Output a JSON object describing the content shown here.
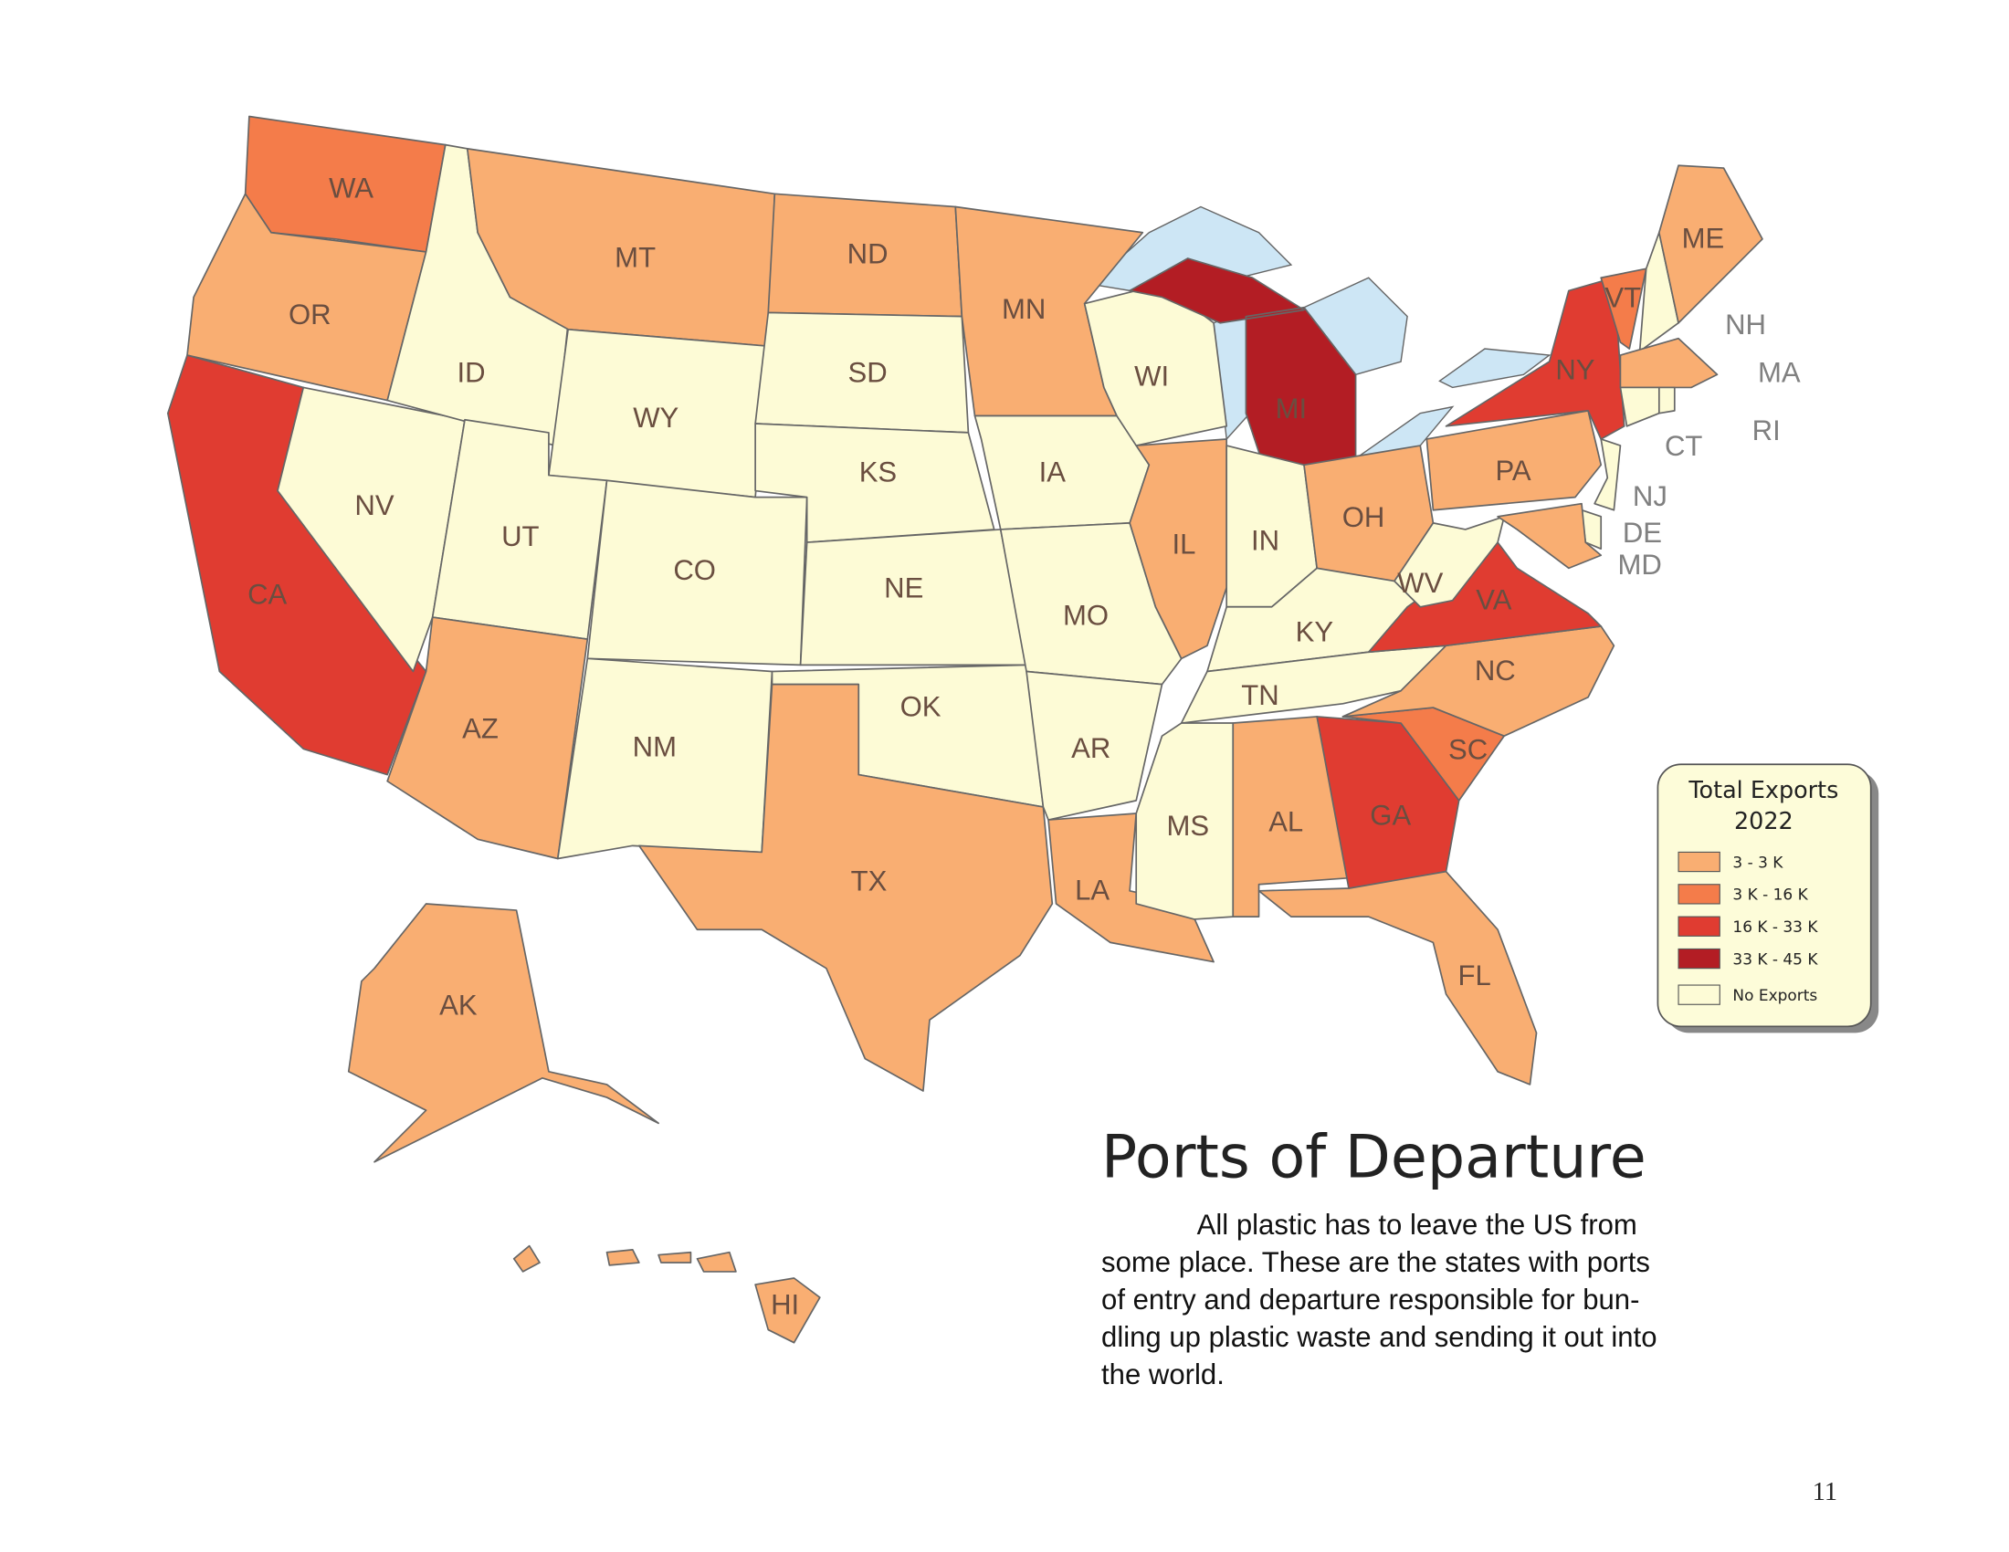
{
  "title": "Ports of Departure",
  "body": [
    "All plastic has to leave the US from",
    "some place. These are the states with ports",
    "of entry and departure responsible for bun-",
    "dling up plastic waste and sending it out into",
    "the world."
  ],
  "page_number": "11",
  "legend": {
    "title": [
      "Total Exports",
      "2022"
    ],
    "items": [
      {
        "label": "3 - 3 K",
        "color": "#f9ae72"
      },
      {
        "label": "3 K - 16 K",
        "color": "#f47c4a"
      },
      {
        "label": "16 K - 33 K",
        "color": "#e03c31"
      },
      {
        "label": "33 K - 45 K",
        "color": "#b31d24"
      },
      {
        "label": "No Exports",
        "color": "#fdfbd6"
      }
    ]
  },
  "states": [
    {
      "label": "WA",
      "color": "#f47c4a"
    },
    {
      "label": "OR",
      "color": "#f9ae72"
    },
    {
      "label": "CA",
      "color": "#e03c31"
    },
    {
      "label": "NV",
      "color": "#fdfbd6"
    },
    {
      "label": "ID",
      "color": "#fdfbd6"
    },
    {
      "label": "MT",
      "color": "#f9ae72"
    },
    {
      "label": "WY",
      "color": "#fdfbd6"
    },
    {
      "label": "UT",
      "color": "#fdfbd6"
    },
    {
      "label": "CO",
      "color": "#fdfbd6"
    },
    {
      "label": "AZ",
      "color": "#f9ae72"
    },
    {
      "label": "NM",
      "color": "#fdfbd6"
    },
    {
      "label": "ND",
      "color": "#f9ae72"
    },
    {
      "label": "SD",
      "color": "#fdfbd6"
    },
    {
      "label": "KS",
      "color": "#fdfbd6"
    },
    {
      "label": "NE",
      "color": "#fdfbd6"
    },
    {
      "label": "OK",
      "color": "#fdfbd6"
    },
    {
      "label": "TX",
      "color": "#f9ae72"
    },
    {
      "label": "MN",
      "color": "#f9ae72"
    },
    {
      "label": "IA",
      "color": "#fdfbd6"
    },
    {
      "label": "MO",
      "color": "#fdfbd6"
    },
    {
      "label": "AR",
      "color": "#fdfbd6"
    },
    {
      "label": "LA",
      "color": "#f9ae72"
    },
    {
      "label": "WI",
      "color": "#fdfbd6"
    },
    {
      "label": "IL",
      "color": "#f9ae72"
    },
    {
      "label": "MI",
      "color": "#b31d24"
    },
    {
      "label": "IN",
      "color": "#fdfbd6"
    },
    {
      "label": "OH",
      "color": "#f9ae72"
    },
    {
      "label": "KY",
      "color": "#fdfbd6"
    },
    {
      "label": "TN",
      "color": "#fdfbd6"
    },
    {
      "label": "MS",
      "color": "#fdfbd6"
    },
    {
      "label": "AL",
      "color": "#f9ae72"
    },
    {
      "label": "GA",
      "color": "#e03c31"
    },
    {
      "label": "FL",
      "color": "#f9ae72"
    },
    {
      "label": "SC",
      "color": "#f47c4a"
    },
    {
      "label": "NC",
      "color": "#f9ae72"
    },
    {
      "label": "VA",
      "color": "#e03c31"
    },
    {
      "label": "WV",
      "color": "#fdfbd6"
    },
    {
      "label": "PA",
      "color": "#f9ae72"
    },
    {
      "label": "NY",
      "color": "#e03c31"
    },
    {
      "label": "VT",
      "color": "#f47c4a"
    },
    {
      "label": "NH",
      "color": "#fdfbd6"
    },
    {
      "label": "ME",
      "color": "#f9ae72"
    },
    {
      "label": "MA",
      "color": "#f9ae72"
    },
    {
      "label": "CT",
      "color": "#fdfbd6"
    },
    {
      "label": "RI",
      "color": "#fdfbd6"
    },
    {
      "label": "NJ",
      "color": "#fdfbd6"
    },
    {
      "label": "DE",
      "color": "#fdfbd6"
    },
    {
      "label": "MD",
      "color": "#f9ae72"
    },
    {
      "label": "AK",
      "color": "#f9ae72"
    },
    {
      "label": "HI",
      "color": "#f9ae72"
    }
  ]
}
